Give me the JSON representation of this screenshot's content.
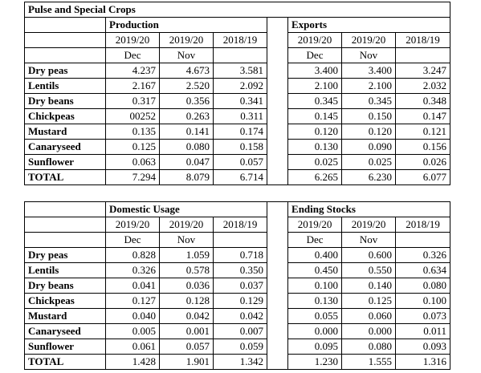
{
  "title": "Pulse and Special Crops",
  "top": {
    "left_header": "Production",
    "right_header": "Exports",
    "years": [
      "2019/20",
      "2019/20",
      "2018/19"
    ],
    "months": [
      "Dec",
      "Nov",
      ""
    ],
    "rows": [
      {
        "label": "Dry peas",
        "left": [
          "4.237",
          "4.673",
          "3.581"
        ],
        "right": [
          "3.400",
          "3.400",
          "3.247"
        ]
      },
      {
        "label": "Lentils",
        "left": [
          "2.167",
          "2.520",
          "2.092"
        ],
        "right": [
          "2.100",
          "2.100",
          "2.032"
        ]
      },
      {
        "label": "Dry beans",
        "left": [
          "0.317",
          "0.356",
          "0.341"
        ],
        "right": [
          "0.345",
          "0.345",
          "0.348"
        ]
      },
      {
        "label": "Chickpeas",
        "left": [
          "00252",
          "0.263",
          "0.311"
        ],
        "right": [
          "0.145",
          "0.150",
          "0.147"
        ]
      },
      {
        "label": "Mustard",
        "left": [
          "0.135",
          "0.141",
          "0.174"
        ],
        "right": [
          "0.120",
          "0.120",
          "0.121"
        ]
      },
      {
        "label": "Canaryseed",
        "left": [
          "0.125",
          "0.080",
          "0.158"
        ],
        "right": [
          "0.130",
          "0.090",
          "0.156"
        ]
      },
      {
        "label": "Sunflower",
        "left": [
          "0.063",
          "0.047",
          "0.057"
        ],
        "right": [
          "0.025",
          "0.025",
          "0.026"
        ]
      },
      {
        "label": "TOTAL",
        "left": [
          "7.294",
          "8.079",
          "6.714"
        ],
        "right": [
          "6.265",
          "6.230",
          "6.077"
        ]
      }
    ]
  },
  "bottom": {
    "left_header": "Domestic Usage",
    "right_header": "Ending Stocks",
    "years": [
      "2019/20",
      "2019/20",
      "2018/19"
    ],
    "months": [
      "Dec",
      "Nov",
      ""
    ],
    "rows": [
      {
        "label": "Dry peas",
        "left": [
          "0.828",
          "1.059",
          "0.718"
        ],
        "right": [
          "0.400",
          "0.600",
          "0.326"
        ]
      },
      {
        "label": "Lentils",
        "left": [
          "0.326",
          "0.578",
          "0.350"
        ],
        "right": [
          "0.450",
          "0.550",
          "0.634"
        ]
      },
      {
        "label": "Dry beans",
        "left": [
          "0.041",
          "0.036",
          "0.037"
        ],
        "right": [
          "0.100",
          "0.140",
          "0.080"
        ]
      },
      {
        "label": "Chickpeas",
        "left": [
          "0.127",
          "0.128",
          "0.129"
        ],
        "right": [
          "0.130",
          "0.125",
          "0.100"
        ]
      },
      {
        "label": "Mustard",
        "left": [
          "0.040",
          "0.042",
          "0.042"
        ],
        "right": [
          "0.055",
          "0.060",
          "0.073"
        ]
      },
      {
        "label": "Canaryseed",
        "left": [
          "0.005",
          "0.001",
          "0.007"
        ],
        "right": [
          "0.000",
          "0.000",
          "0.011"
        ]
      },
      {
        "label": "Sunflower",
        "left": [
          "0.061",
          "0.057",
          "0.059"
        ],
        "right": [
          "0.095",
          "0.080",
          "0.093"
        ]
      },
      {
        "label": "TOTAL",
        "left": [
          "1.428",
          "1.901",
          "1.342"
        ],
        "right": [
          "1.230",
          "1.555",
          "1.316"
        ]
      }
    ]
  }
}
